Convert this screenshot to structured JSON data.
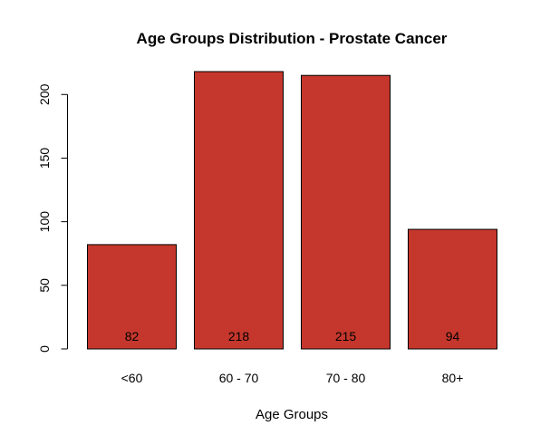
{
  "chart_data": {
    "type": "bar",
    "title": "Age Groups Distribution - Prostate Cancer",
    "xlabel": "Age Groups",
    "ylabel": "",
    "categories": [
      "<60",
      "60 - 70",
      "70 - 80",
      "80+"
    ],
    "values": [
      82,
      218,
      215,
      94
    ],
    "data_labels": [
      "82",
      "218",
      "215",
      "94"
    ],
    "ylim": [
      0,
      218
    ],
    "yticks": [
      0,
      50,
      100,
      150,
      200
    ],
    "ytick_labels": [
      "0",
      "50",
      "100",
      "150",
      "200"
    ],
    "bar_color": "#C5372C",
    "bar_edge_color": "#000000",
    "grid": false,
    "legend": "none"
  }
}
